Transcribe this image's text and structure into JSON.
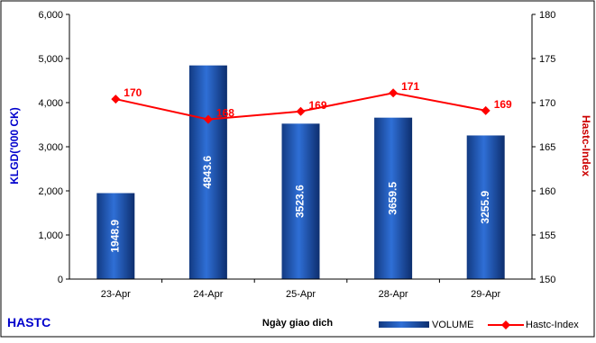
{
  "chart_data": {
    "type": "bar",
    "categories": [
      "23-Apr",
      "24-Apr",
      "25-Apr",
      "28-Apr",
      "29-Apr"
    ],
    "series": [
      {
        "name": "VOLUME",
        "type": "bar",
        "axis": "left",
        "values": [
          1948.9,
          4843.6,
          3523.6,
          3659.5,
          3255.9
        ],
        "labels": [
          "1948.9",
          "4843.6",
          "3523.6",
          "3659.5",
          "3255.9"
        ],
        "color": "#1f4fa8"
      },
      {
        "name": "Hastc-Index",
        "type": "line",
        "axis": "right",
        "values": [
          170.4,
          168.1,
          169.0,
          171.1,
          169.1
        ],
        "labels": [
          "170",
          "168",
          "169",
          "171",
          "169"
        ],
        "color": "#ff0000"
      }
    ],
    "xlabel": "Ngày giao dich",
    "ylabel": "KLGD('000 CK)",
    "ylabel_right": "Hastc-Index",
    "ylim": [
      0,
      6000
    ],
    "ylim_right": [
      150,
      180
    ],
    "yticks": [
      "0",
      "1,000",
      "2,000",
      "3,000",
      "4,000",
      "5,000",
      "6,000"
    ],
    "yticks_right": [
      "150",
      "155",
      "160",
      "165",
      "170",
      "175",
      "180"
    ],
    "grid": false,
    "legend_position": "bottom-right",
    "corner_label": "HASTC",
    "colors": {
      "axis_left_label": "#0000cc",
      "axis_right_label": "#cc0000",
      "corner_label": "#0000cc"
    }
  }
}
